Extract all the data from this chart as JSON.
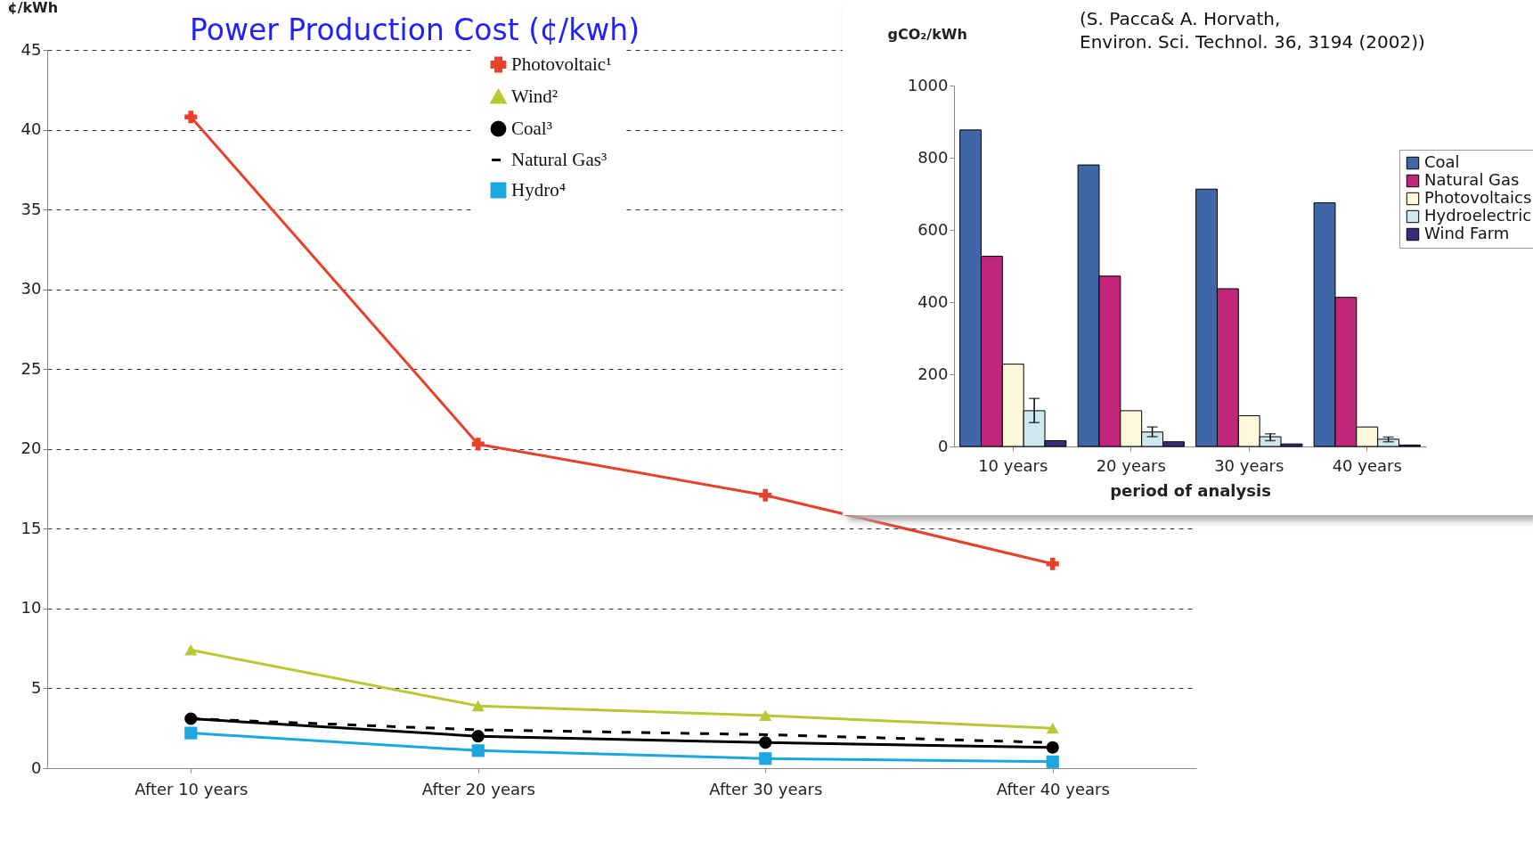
{
  "chart_data": [
    {
      "type": "line",
      "title": "Power Production Cost (¢/kwh)",
      "ylabel": "¢/kWh",
      "categories": [
        "After 10 years",
        "After 20 years",
        "After 30 years",
        "After 40 years"
      ],
      "series": [
        {
          "name": "Photovoltaic¹",
          "color": "#e8402a",
          "values": [
            40.8,
            20.3,
            17.1,
            12.8
          ],
          "marker": "cross",
          "line_style": "solid"
        },
        {
          "name": "Wind²",
          "color": "#b8c832",
          "values": [
            7.4,
            3.9,
            3.3,
            2.5
          ],
          "marker": "triangle",
          "line_style": "solid"
        },
        {
          "name": "Coal³",
          "color": "#000000",
          "values": [
            3.1,
            2.0,
            1.6,
            1.3
          ],
          "marker": "circle",
          "line_style": "solid"
        },
        {
          "name": "Natural Gas³",
          "color": "#000000",
          "values": [
            3.1,
            2.4,
            2.1,
            1.6
          ],
          "marker": "none",
          "line_style": "dashed"
        },
        {
          "name": "Hydro⁴",
          "color": "#1ba8e0",
          "values": [
            2.2,
            1.1,
            0.6,
            0.4
          ],
          "marker": "square",
          "line_style": "solid"
        }
      ],
      "ylim": [
        0,
        45
      ],
      "yticks": [
        0,
        5,
        10,
        15,
        20,
        25,
        30,
        35,
        40,
        45
      ],
      "grid": "y",
      "legend": "top"
    },
    {
      "type": "bar",
      "ylabel": "gCO₂/kWh",
      "xlabel": "period of analysis",
      "annotations": [
        "(S. Pacca& A. Horvath,\nEnviron. Sci. Technol. 36, 3194 (2002))"
      ],
      "categories": [
        "10 years",
        "20 years",
        "30 years",
        "40 years"
      ],
      "series": [
        {
          "name": "Coal",
          "color": "#3f67a8",
          "values": [
            877,
            780,
            713,
            675
          ]
        },
        {
          "name": "Natural Gas",
          "color": "#c0277a",
          "values": [
            527,
            472,
            437,
            413
          ]
        },
        {
          "name": "Photovoltaics",
          "color": "#fdf8dc",
          "values": [
            228,
            99,
            85,
            54
          ]
        },
        {
          "name": "Hydroelectric",
          "color": "#cfe8ef",
          "values": [
            99,
            40,
            27,
            20
          ],
          "errors": [
            [
              66,
              133
            ],
            [
              27,
              54
            ],
            [
              16,
              35
            ],
            [
              13,
              26
            ]
          ]
        },
        {
          "name": "Wind Farm",
          "color": "#3a2a7a",
          "values": [
            16,
            13,
            7,
            4
          ]
        }
      ],
      "ylim": [
        0,
        1000
      ],
      "yticks": [
        0,
        200,
        400,
        600,
        800,
        {
          "value": 1000,
          "label": "1000"
        }
      ],
      "legend": "right"
    }
  ]
}
